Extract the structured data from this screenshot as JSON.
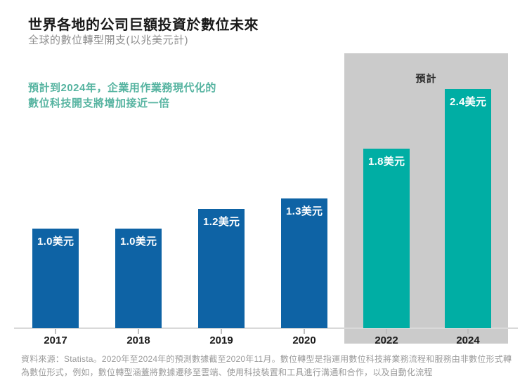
{
  "header": {
    "title": "世界各地的公司巨額投資於數位未來",
    "subtitle": "全球的數位轉型開支(以兆美元計)"
  },
  "annotation": {
    "lines": [
      "預計到2024年，企業用作業務現代化的",
      "數位科技開支將增加接近一倍"
    ]
  },
  "chart_data": {
    "type": "bar",
    "title": "世界各地的公司巨額投資於數位未來",
    "subtitle": "全球的數位轉型開支(以兆美元計)",
    "categories": [
      "2017",
      "2018",
      "2019",
      "2020",
      "2022",
      "2024"
    ],
    "values": [
      1.0,
      1.0,
      1.2,
      1.3,
      1.8,
      2.4
    ],
    "bar_labels": [
      "1.0美元",
      "1.0美元",
      "1.2美元",
      "1.3美元",
      "1.8美元",
      "2.4美元"
    ],
    "unit": "兆美元",
    "forecast_label": "預計",
    "forecast_categories": [
      "2022",
      "2024"
    ],
    "is_forecast": [
      false,
      false,
      false,
      false,
      true,
      true
    ],
    "ylim": [
      0,
      2.6
    ],
    "grid": false,
    "legend": "none",
    "xlabel": "",
    "ylabel": "",
    "colors": {
      "actual_bar": "#0e63a5",
      "forecast_bar": "#00aea4",
      "forecast_panel": "#cbcbcb",
      "bar_label_text": "#ffffff",
      "annotation_text": "#57b4a1"
    }
  },
  "footer": {
    "text": "資料來源：Statista。2020年至2024年的預測數據截至2020年11月。數位轉型是指運用數位科技將業務流程和服務由非數位形式轉為數位形式，例如，數位轉型涵蓋將數據遷移至雲端、使用科技裝置和工具進行溝通和合作，以及自動化流程"
  }
}
